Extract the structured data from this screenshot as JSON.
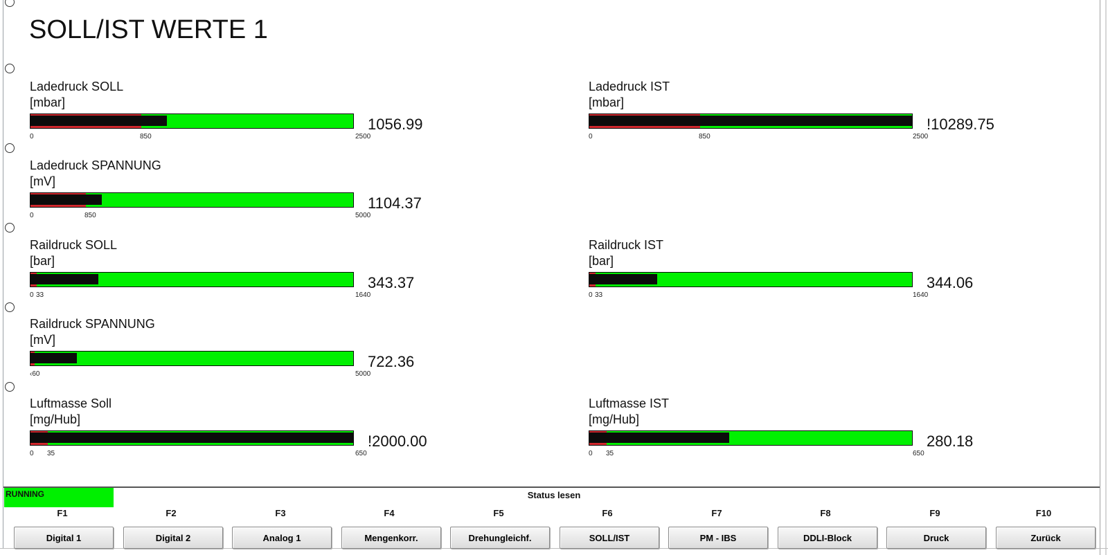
{
  "page": {
    "title": "SOLL/IST WERTE 1"
  },
  "gauges": [
    {
      "label": "Ladedruck SOLL",
      "unit": "[mbar]",
      "value": "1056.99",
      "ticks": {
        "min": "0",
        "mark": "850",
        "max": "2500"
      }
    },
    {
      "label": "Ladedruck IST",
      "unit": "[mbar]",
      "value": "!10289.75",
      "ticks": {
        "min": "0",
        "mark": "850",
        "max": "2500"
      }
    },
    {
      "label": "Ladedruck SPANNUNG",
      "unit": "[mV]",
      "value": "1104.37",
      "ticks": {
        "min": "0",
        "mark": "850",
        "max": "5000"
      }
    },
    {
      "label": "Raildruck SOLL",
      "unit": "[bar]",
      "value": "343.37",
      "ticks": {
        "min": "0",
        "mark": "33",
        "max": "1640"
      }
    },
    {
      "label": "Raildruck IST",
      "unit": "[bar]",
      "value": "344.06",
      "ticks": {
        "min": "0",
        "mark": "33",
        "max": "1640"
      }
    },
    {
      "label": "Raildruck SPANNUNG",
      "unit": "[mV]",
      "value": "722.36",
      "ticks": {
        "min": "",
        "mark": "‹60",
        "max": "5000"
      }
    },
    {
      "label": "Luftmasse Soll",
      "unit": "[mg/Hub]",
      "value": "!2000.00",
      "ticks": {
        "min": "0",
        "mark": "35",
        "max": "650"
      }
    },
    {
      "label": "Luftmasse IST",
      "unit": "[mg/Hub]",
      "value": "280.18",
      "ticks": {
        "min": "0",
        "mark": "35",
        "max": "650"
      }
    }
  ],
  "status": {
    "running": "RUNNING",
    "center": "Status lesen",
    "colors": {
      "ok": "#00f000",
      "alarm": "#d1282e",
      "indicator": "#0b0b0b"
    }
  },
  "function_keys": [
    {
      "key": "F1",
      "label": "Digital 1"
    },
    {
      "key": "F2",
      "label": "Digital 2"
    },
    {
      "key": "F3",
      "label": "Analog 1"
    },
    {
      "key": "F4",
      "label": "Mengenkorr."
    },
    {
      "key": "F5",
      "label": "Drehungleichf."
    },
    {
      "key": "F6",
      "label": "SOLL/IST"
    },
    {
      "key": "F7",
      "label": "PM - IBS"
    },
    {
      "key": "F8",
      "label": "DDLI-Block"
    },
    {
      "key": "F9",
      "label": "Druck"
    },
    {
      "key": "F10",
      "label": "Zurück"
    }
  ]
}
